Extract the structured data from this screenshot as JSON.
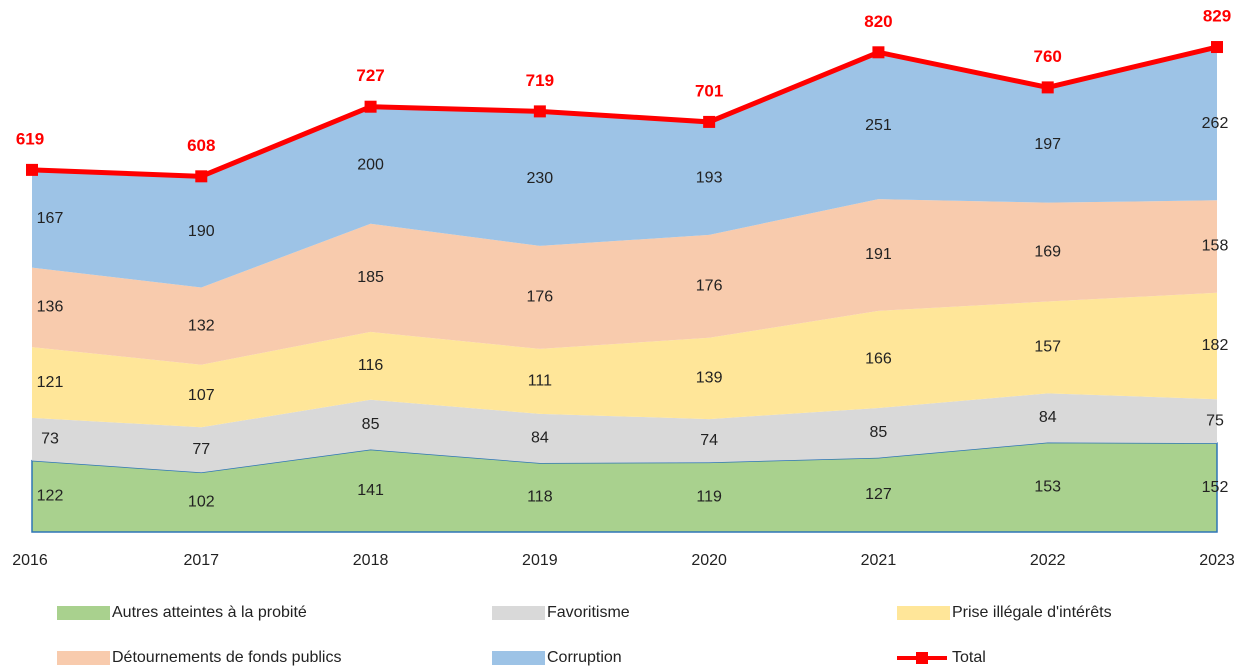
{
  "chart_data": {
    "type": "stacked-area",
    "categories": [
      "2016",
      "2017",
      "2018",
      "2019",
      "2020",
      "2021",
      "2022",
      "2023"
    ],
    "series": [
      {
        "name": "Autres atteintes à la probité",
        "color": "#a9d18e",
        "values": [
          122,
          102,
          141,
          118,
          119,
          127,
          153,
          152
        ]
      },
      {
        "name": "Favoritisme",
        "color": "#d9d9d9",
        "values": [
          73,
          77,
          85,
          84,
          74,
          85,
          84,
          75
        ]
      },
      {
        "name": "Prise illégale d'intérêts",
        "color": "#ffe699",
        "values": [
          121,
          107,
          116,
          111,
          139,
          166,
          157,
          182
        ]
      },
      {
        "name": "Détournements de fonds publics",
        "color": "#f8cbad",
        "values": [
          136,
          132,
          185,
          176,
          176,
          191,
          169,
          158
        ]
      },
      {
        "name": "Corruption",
        "color": "#9dc3e6",
        "values": [
          167,
          190,
          200,
          230,
          193,
          251,
          197,
          262
        ]
      },
      {
        "name": "Total",
        "color": "#ff0000",
        "type": "line",
        "values": [
          619,
          608,
          727,
          719,
          701,
          820,
          760,
          829
        ]
      }
    ]
  }
}
